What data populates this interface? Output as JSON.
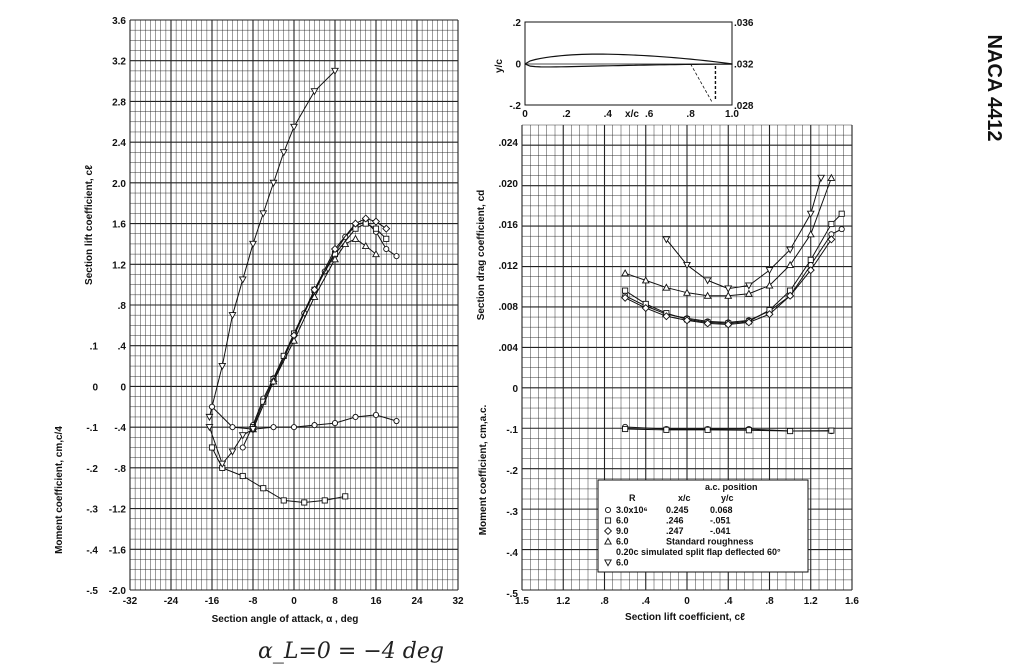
{
  "airfoil_name": "NACA 4412",
  "handwritten_note": "α_L=0 = −4 deg",
  "chart_data": [
    {
      "type": "line",
      "panel": "lift-vs-alpha",
      "xlabel": "Section angle of attack,  α , deg",
      "ylabel": "Section lift coefficient,  cℓ",
      "xlim": [
        -32,
        32
      ],
      "ylim": [
        -2.0,
        3.6
      ],
      "x_ticks": [
        "-32",
        "-24",
        "-16",
        "-8",
        "0",
        "8",
        "16",
        "24",
        "32"
      ],
      "y_ticks": [
        "-2.0",
        "-1.6",
        "-1.2",
        "-.8",
        "-.4",
        "0",
        ".4",
        ".8",
        "1.2",
        "1.6",
        "2.0",
        "2.4",
        "2.8",
        "3.2",
        "3.6"
      ],
      "grid": true,
      "series": [
        {
          "marker": "triangle-down",
          "values": [
            [
              -16.5,
              -0.3
            ],
            [
              -14,
              0.2
            ],
            [
              -12,
              0.7
            ],
            [
              -10,
              1.05
            ],
            [
              -8,
              1.4
            ],
            [
              -6,
              1.7
            ],
            [
              -4,
              2.0
            ],
            [
              -2,
              2.3
            ],
            [
              0,
              2.55
            ],
            [
              4,
              2.9
            ],
            [
              8,
              3.1
            ]
          ]
        },
        {
          "marker": "circle",
          "values": [
            [
              -10,
              -0.6
            ],
            [
              -8,
              -0.38
            ],
            [
              -6,
              -0.12
            ],
            [
              -4,
              0.08
            ],
            [
              -2,
              0.3
            ],
            [
              0,
              0.5
            ],
            [
              2,
              0.72
            ],
            [
              4,
              0.93
            ],
            [
              6,
              1.13
            ],
            [
              8,
              1.32
            ],
            [
              10,
              1.47
            ],
            [
              12,
              1.58
            ],
            [
              14,
              1.62
            ],
            [
              16,
              1.52
            ],
            [
              18,
              1.35
            ],
            [
              20,
              1.28
            ]
          ]
        },
        {
          "marker": "square",
          "values": [
            [
              -8,
              -0.4
            ],
            [
              -6,
              -0.15
            ],
            [
              -4,
              0.07
            ],
            [
              -2,
              0.3
            ],
            [
              0,
              0.52
            ],
            [
              4,
              0.95
            ],
            [
              8,
              1.3
            ],
            [
              12,
              1.55
            ],
            [
              14,
              1.6
            ],
            [
              16,
              1.55
            ],
            [
              18,
              1.45
            ]
          ]
        },
        {
          "marker": "diamond",
          "values": [
            [
              -8,
              -0.42
            ],
            [
              -4,
              0.05
            ],
            [
              0,
              0.5
            ],
            [
              4,
              0.95
            ],
            [
              8,
              1.35
            ],
            [
              12,
              1.6
            ],
            [
              14,
              1.65
            ],
            [
              16,
              1.62
            ],
            [
              18,
              1.55
            ]
          ]
        },
        {
          "marker": "triangle-up",
          "values": [
            [
              -8,
              -0.42
            ],
            [
              -4,
              0.05
            ],
            [
              0,
              0.45
            ],
            [
              4,
              0.88
            ],
            [
              8,
              1.25
            ],
            [
              10,
              1.4
            ],
            [
              12,
              1.45
            ],
            [
              14,
              1.38
            ],
            [
              16,
              1.3
            ]
          ]
        }
      ],
      "moment_axis": {
        "label": "Moment coefficient,  cm,c/4",
        "ylim": [
          -0.5,
          0.1
        ],
        "ticks": [
          "-.5",
          "-.4",
          "-.3",
          "-.2",
          "-.1",
          "0",
          ".1"
        ],
        "series": [
          {
            "marker": "circle",
            "values": [
              [
                -16,
                -0.05
              ],
              [
                -12,
                -0.1
              ],
              [
                -8,
                -0.105
              ],
              [
                -4,
                -0.1
              ],
              [
                0,
                -0.1
              ],
              [
                4,
                -0.095
              ],
              [
                8,
                -0.09
              ],
              [
                12,
                -0.075
              ],
              [
                16,
                -0.07
              ],
              [
                20,
                -0.085
              ]
            ]
          },
          {
            "marker": "square",
            "values": [
              [
                -16,
                -0.15
              ],
              [
                -14,
                -0.2
              ],
              [
                -10,
                -0.22
              ],
              [
                -6,
                -0.25
              ],
              [
                -2,
                -0.28
              ],
              [
                2,
                -0.285
              ],
              [
                6,
                -0.28
              ],
              [
                10,
                -0.27
              ]
            ]
          },
          {
            "marker": "triangle-down",
            "values": [
              [
                -16.5,
                -0.1
              ],
              [
                -14,
                -0.19
              ],
              [
                -12,
                -0.16
              ],
              [
                -10,
                -0.12
              ],
              [
                -8,
                -0.105
              ]
            ]
          }
        ]
      }
    },
    {
      "type": "line",
      "panel": "drag-polar",
      "xlabel": "Section lift coefficient,  cℓ",
      "ylabel": "Section drag coefficient,  cd",
      "xlim": [
        -1.6,
        1.6
      ],
      "ylim": [
        0,
        0.024
      ],
      "x_ticks": [
        "1.5",
        "1.2",
        ".8",
        ".4",
        "0",
        ".4",
        ".8",
        "1.2",
        "1.6"
      ],
      "y_ticks": [
        "0",
        ".004",
        ".008",
        ".012",
        ".016",
        ".020",
        ".024"
      ],
      "grid": true,
      "series": [
        {
          "marker": "circle",
          "values": [
            [
              -0.6,
              0.009
            ],
            [
              -0.4,
              0.008
            ],
            [
              -0.2,
              0.0072
            ],
            [
              0,
              0.0068
            ],
            [
              0.2,
              0.0065
            ],
            [
              0.4,
              0.0064
            ],
            [
              0.6,
              0.0066
            ],
            [
              0.8,
              0.0075
            ],
            [
              1.0,
              0.009
            ],
            [
              1.2,
              0.012
            ],
            [
              1.4,
              0.015
            ],
            [
              1.5,
              0.0155
            ]
          ]
        },
        {
          "marker": "square",
          "values": [
            [
              -0.6,
              0.0095
            ],
            [
              -0.4,
              0.0082
            ],
            [
              -0.2,
              0.0073
            ],
            [
              0,
              0.0067
            ],
            [
              0.2,
              0.0064
            ],
            [
              0.4,
              0.0063
            ],
            [
              0.6,
              0.0065
            ],
            [
              0.8,
              0.0076
            ],
            [
              1.0,
              0.0095
            ],
            [
              1.2,
              0.0125
            ],
            [
              1.4,
              0.016
            ],
            [
              1.5,
              0.017
            ]
          ]
        },
        {
          "marker": "diamond",
          "values": [
            [
              -0.6,
              0.0088
            ],
            [
              -0.4,
              0.0078
            ],
            [
              -0.2,
              0.007
            ],
            [
              0,
              0.0066
            ],
            [
              0.2,
              0.0063
            ],
            [
              0.4,
              0.0062
            ],
            [
              0.6,
              0.0064
            ],
            [
              0.8,
              0.0072
            ],
            [
              1.0,
              0.009
            ],
            [
              1.2,
              0.0115
            ],
            [
              1.4,
              0.0145
            ]
          ]
        },
        {
          "marker": "triangle-up",
          "values": [
            [
              -0.6,
              0.0112
            ],
            [
              -0.4,
              0.0105
            ],
            [
              -0.2,
              0.0098
            ],
            [
              0,
              0.0093
            ],
            [
              0.2,
              0.009
            ],
            [
              0.4,
              0.009
            ],
            [
              0.6,
              0.0092
            ],
            [
              0.8,
              0.01
            ],
            [
              1.0,
              0.012
            ],
            [
              1.2,
              0.015
            ],
            [
              1.4,
              0.0205
            ]
          ]
        },
        {
          "marker": "triangle-down",
          "values": [
            [
              -0.2,
              0.0145
            ],
            [
              0,
              0.012
            ],
            [
              0.2,
              0.0105
            ],
            [
              0.4,
              0.0097
            ],
            [
              0.6,
              0.01
            ],
            [
              0.8,
              0.0115
            ],
            [
              1.0,
              0.0135
            ],
            [
              1.2,
              0.017
            ],
            [
              1.3,
              0.0205
            ]
          ]
        }
      ],
      "moment_axis": {
        "label": "Moment coefficient,  cm,a.c.",
        "ylim": [
          -0.5,
          0
        ],
        "ticks": [
          "-.5",
          "-.4",
          "-.3",
          "-.2",
          "-.1",
          "0"
        ],
        "series": [
          {
            "marker": "circle",
            "values": [
              [
                -0.6,
                -0.095
              ],
              [
                -0.2,
                -0.1
              ],
              [
                0.2,
                -0.1
              ],
              [
                0.6,
                -0.1
              ],
              [
                1.0,
                -0.105
              ],
              [
                1.4,
                -0.105
              ]
            ]
          },
          {
            "marker": "square",
            "values": [
              [
                -0.6,
                -0.1
              ],
              [
                -0.2,
                -0.102
              ],
              [
                0.2,
                -0.102
              ],
              [
                0.6,
                -0.103
              ],
              [
                1.0,
                -0.105
              ],
              [
                1.4,
                -0.104
              ]
            ]
          }
        ]
      },
      "legend": {
        "header_ac": "a.c. position",
        "header_R": "R",
        "header_xc": "x/c",
        "header_yc": "y/c",
        "rows": [
          {
            "marker": "circle",
            "R": "3.0x10⁶",
            "xc": "0.245",
            "yc": "0.068"
          },
          {
            "marker": "square",
            "R": "6.0",
            "xc": ".246",
            "yc": "-.051"
          },
          {
            "marker": "diamond",
            "R": "9.0",
            "xc": ".247",
            "yc": "-.041"
          },
          {
            "marker": "triangle-up",
            "R": "6.0",
            "note": "Standard roughness"
          },
          {
            "note": "0.20c simulated split flap deflected 60°"
          },
          {
            "marker": "triangle-down",
            "R": "6.0"
          }
        ]
      }
    },
    {
      "type": "line",
      "panel": "airfoil-shape",
      "xlabel": "x/c",
      "ylabel": "y/c",
      "x_ticks": [
        "0",
        ".2",
        ".4",
        ".6",
        ".8",
        "1.0"
      ],
      "y_ticks": [
        ".2",
        "0",
        "-.2"
      ],
      "right_ticks": [
        ".036",
        ".032",
        ".028"
      ]
    }
  ]
}
